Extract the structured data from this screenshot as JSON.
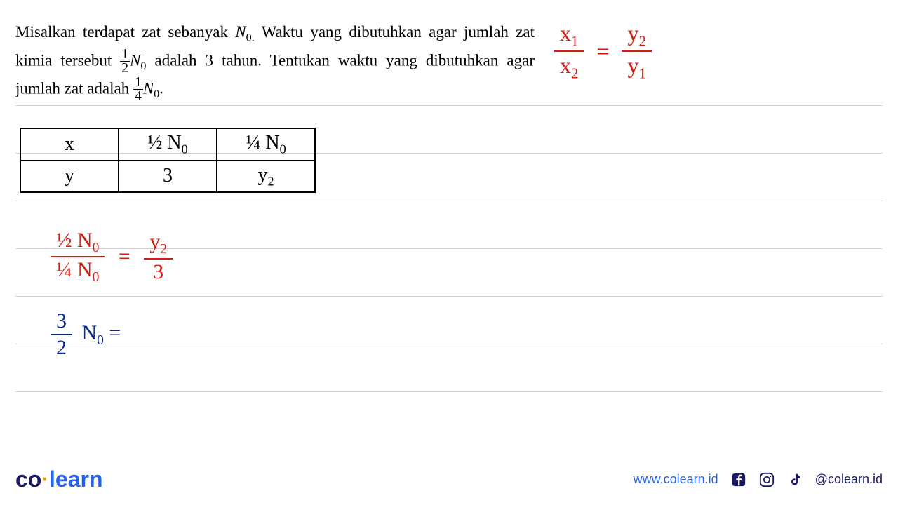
{
  "problem": {
    "text_html": "Misalkan terdapat zat sebanyak <i>N</i><span class=\"sub\">0.</span> Waktu yang dibutuhkan agar jumlah zat kimia tersebut <span class=\"frac\"><span class=\"num\">1</span><span class=\"den\">2</span></span><i>N</i><span class=\"sub\">0</span> adalah 3 tahun. Tentukan waktu yang dibutuhkan agar jumlah zat adalah <span class=\"frac\"><span class=\"num\">1</span><span class=\"den\">4</span></span><i>N</i><span class=\"sub\">0</span>.",
    "font_size": 23,
    "color": "#000000"
  },
  "annotation_top": {
    "left_num": "x",
    "left_num_sub": "1",
    "left_den": "x",
    "left_den_sub": "2",
    "right_num": "y",
    "right_num_sub": "2",
    "right_den": "y",
    "right_den_sub": "1",
    "color": "#d41b0f",
    "border_color": "#d41b0f"
  },
  "table": {
    "rows": [
      [
        "x",
        "½ N<span class=\"hw-sub\">0</span>",
        "¼ N<span class=\"hw-sub\">0</span>"
      ],
      [
        "y",
        "3",
        "y<span class=\"hw-sub\">2</span>"
      ]
    ],
    "border_color": "#000000",
    "font_color": "#000000"
  },
  "annotation_eq2": {
    "left_num": "½ N<span class=\"hw-sub\">0</span>",
    "left_den": "¼ N<span class=\"hw-sub\">0</span>",
    "right_num": "y<span class=\"hw-sub\">2</span>",
    "right_den": "3",
    "color": "#d41b0f",
    "border_color": "#d41b0f"
  },
  "annotation_eq3": {
    "frac_num": "3",
    "frac_den": "2",
    "rest": " N<span class=\"hw-sub\">0</span> =",
    "color": "#0b2a8a"
  },
  "notebook": {
    "line_color": "#d0d0d0",
    "line_positions": [
      0,
      68,
      136,
      204,
      272,
      340,
      408,
      476
    ]
  },
  "footer": {
    "logo_co": "co",
    "logo_dot": "·",
    "logo_learn": "learn",
    "logo_co_color": "#1a1a6a",
    "logo_dot_color": "#f59e0b",
    "logo_learn_color": "#2563eb",
    "url": "www.colearn.id",
    "url_color": "#2563eb",
    "handle": "@colearn.id",
    "handle_color": "#1a1a6a"
  }
}
